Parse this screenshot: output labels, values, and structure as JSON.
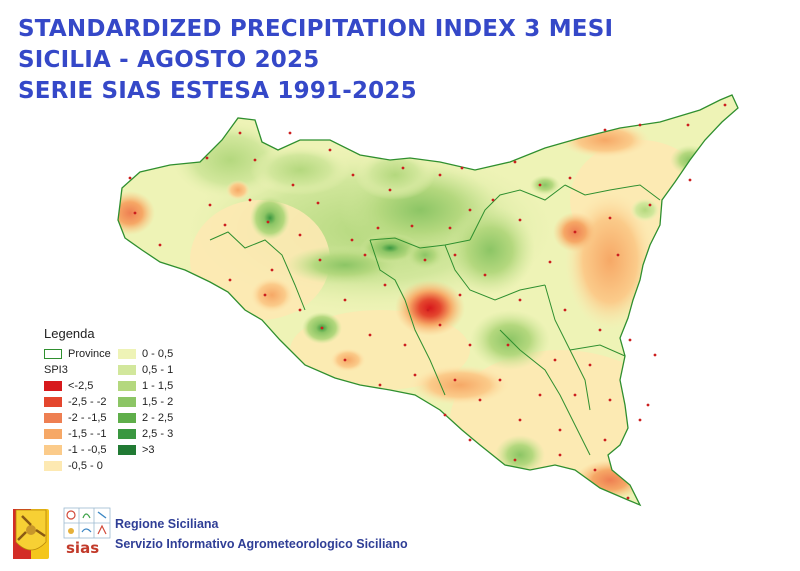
{
  "title": {
    "line1": "STANDARDIZED PRECIPITATION INDEX 3 MESI",
    "line2": "SICILIA - AGOSTO 2025",
    "line3": "SERIE SIAS ESTESA 1991-2025"
  },
  "colors": {
    "title": "#3548c8",
    "province_border": "#2f8f2f",
    "station_dot": "#cc1f1f",
    "classes": {
      "lt_-2.5": "#d7191c",
      "-2.5_-2": "#e4462e",
      "-2_-1.5": "#ee7f52",
      "-1.5_-1": "#f6a866",
      "-1_-0.5": "#fbcb8a",
      "-0.5_0": "#fde9b2",
      "0_0.5": "#eef3b6",
      "0.5_1": "#d2e79c",
      "1_1.5": "#b4d87e",
      "1.5_2": "#8cc565",
      "2_2.5": "#5fae4a",
      "2.5_3": "#3a9740",
      "gt_3": "#217a34"
    }
  },
  "legend": {
    "title": "Legenda",
    "province_label": "Province",
    "spi_label": "SPI3",
    "negative_classes": [
      {
        "label": "<-2,5",
        "color": "#d7191c"
      },
      {
        "label": "-2,5 - -2",
        "color": "#e4462e"
      },
      {
        "label": "-2 - -1,5",
        "color": "#ee7f52"
      },
      {
        "label": "-1,5 - -1",
        "color": "#f6a866"
      },
      {
        "label": "-1 - -0,5",
        "color": "#fbcb8a"
      },
      {
        "label": "-0,5 - 0",
        "color": "#fde9b2"
      }
    ],
    "positive_classes": [
      {
        "label": "0 - 0,5",
        "color": "#eef3b6"
      },
      {
        "label": "0,5 - 1",
        "color": "#d2e79c"
      },
      {
        "label": "1 - 1,5",
        "color": "#b4d87e"
      },
      {
        "label": "1,5 - 2",
        "color": "#8cc565"
      },
      {
        "label": "2 - 2,5",
        "color": "#5fae4a"
      },
      {
        "label": "2,5 - 3",
        "color": "#3a9740"
      },
      {
        "label": ">3",
        "color": "#217a34"
      }
    ]
  },
  "footer": {
    "org_line1": "Regione Siciliana",
    "org_line2": "Servizio Informativo Agrometeorologico Siciliano",
    "sias_logo_text": "sias",
    "logo_left": "regione-siciliana-trinacria-logo",
    "logo_right": "sias-logo"
  }
}
